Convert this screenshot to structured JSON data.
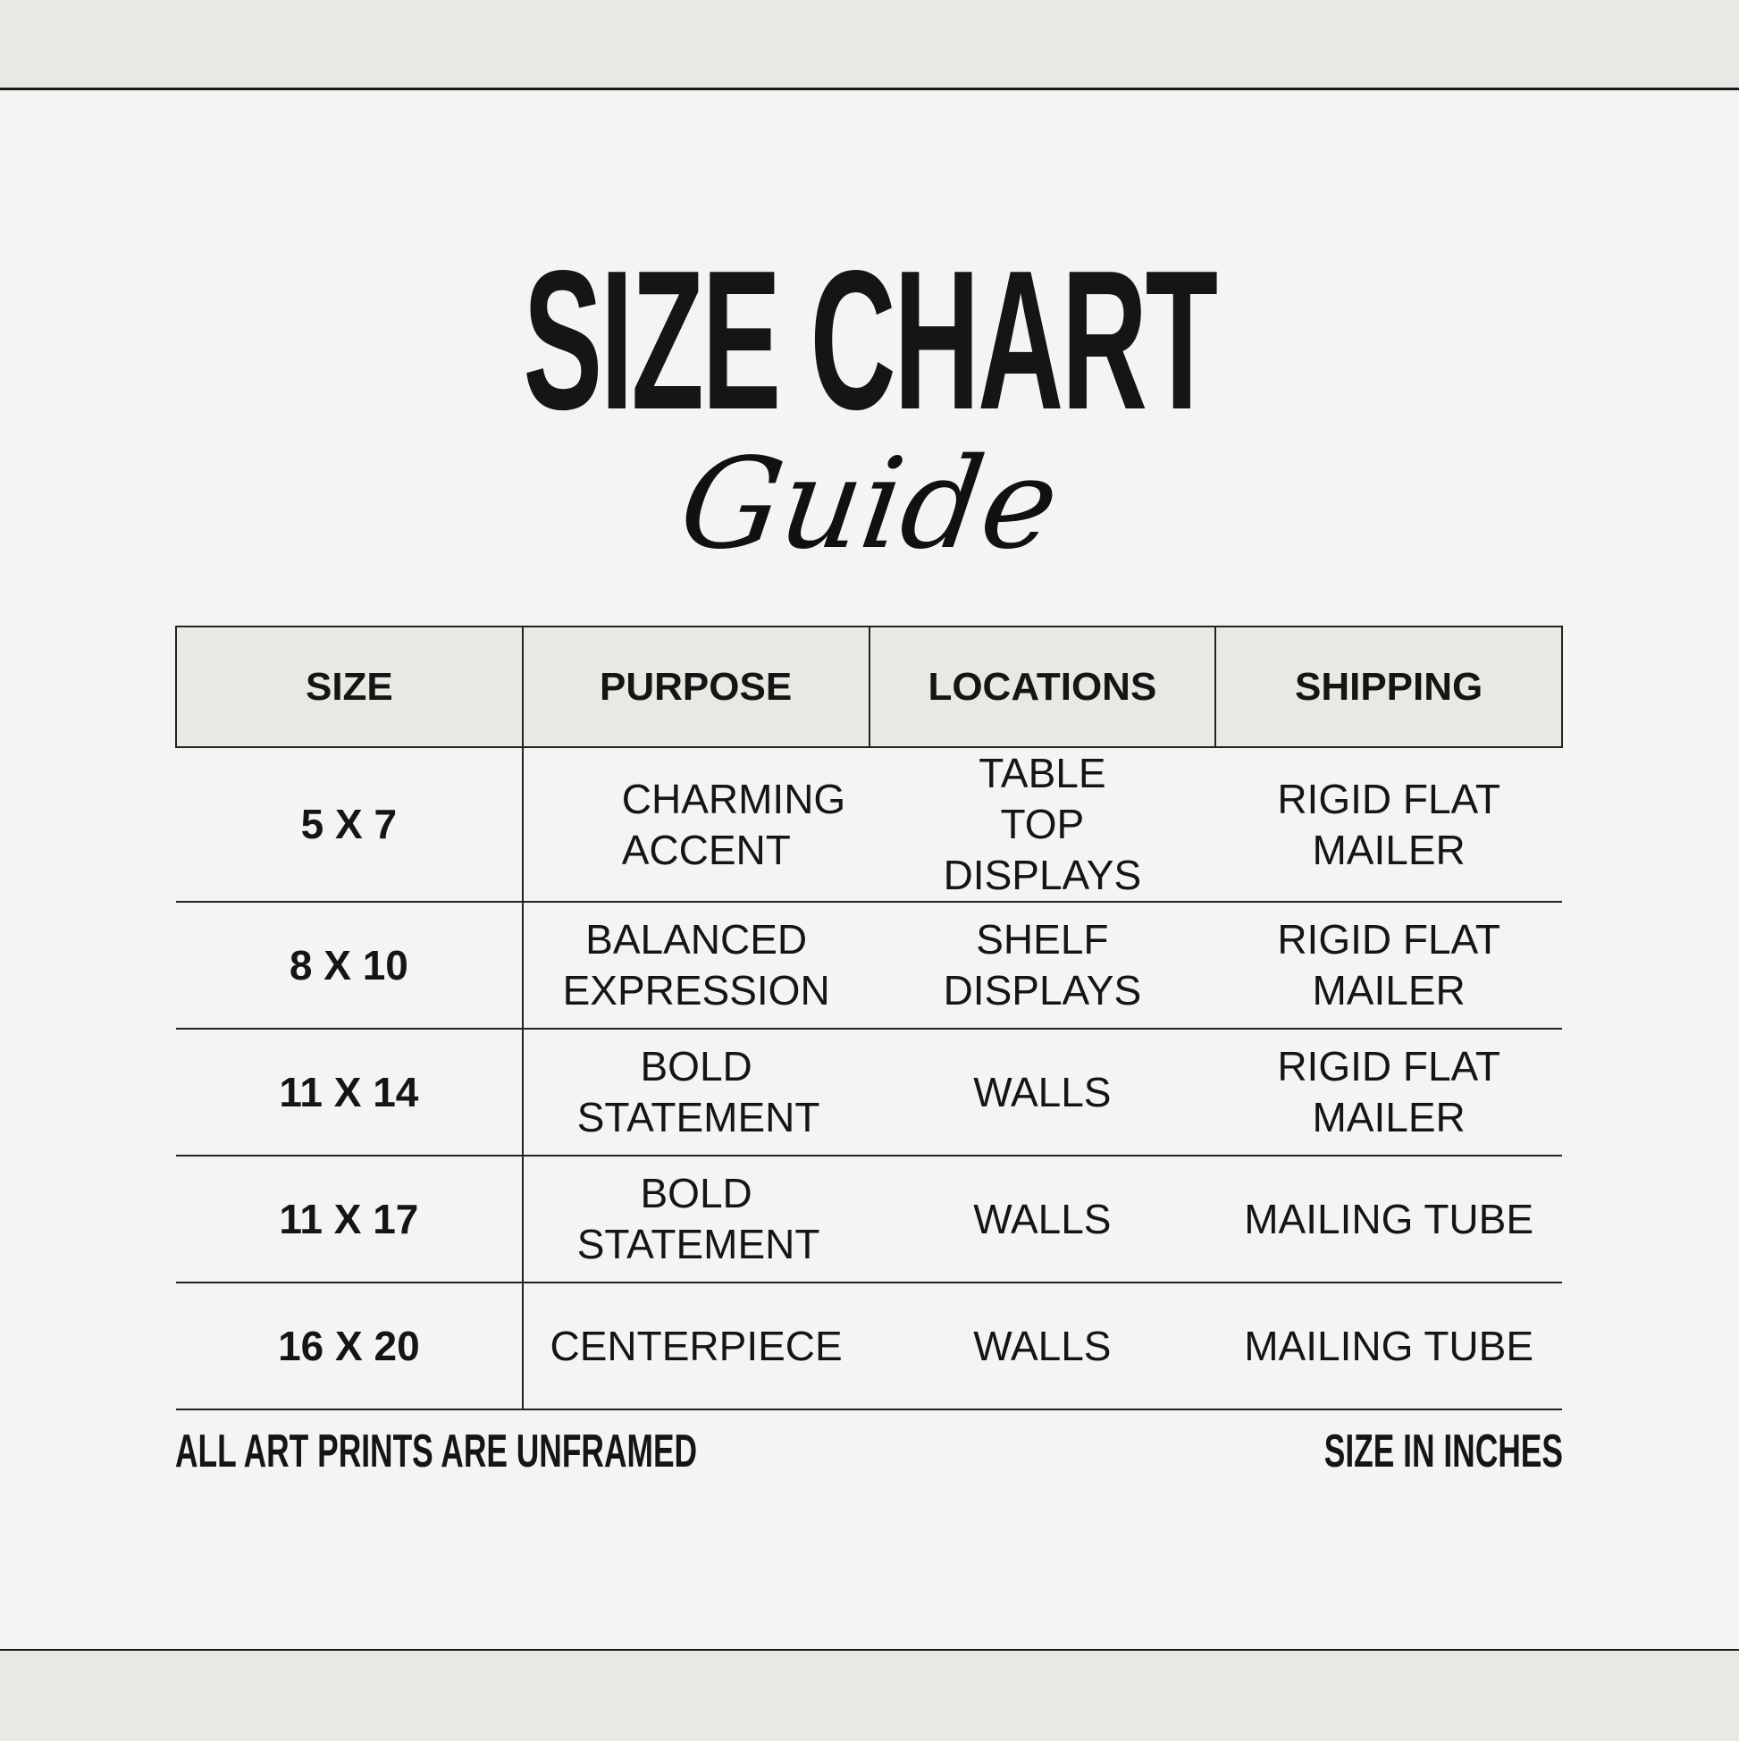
{
  "title": "SIZE CHART",
  "subtitle": "Guide",
  "table": {
    "headers": [
      "SIZE",
      "PURPOSE",
      "LOCATIONS",
      "SHIPPING"
    ],
    "rows": [
      {
        "size": "5 X 7",
        "purpose": "CHARMING ACCENT",
        "locations": "TABLE TOP DISPLAYS",
        "shipping": "RIGID FLAT MAILER"
      },
      {
        "size": "8 X 10",
        "purpose": "BALANCED EXPRESSION",
        "locations": "SHELF DISPLAYS",
        "shipping": "RIGID FLAT MAILER"
      },
      {
        "size": "11 X 14",
        "purpose": "BOLD STATEMENT",
        "locations": "WALLS",
        "shipping": "RIGID FLAT MAILER"
      },
      {
        "size": "11 X 17",
        "purpose": "BOLD STATEMENT",
        "locations": "WALLS",
        "shipping": "MAILING TUBE"
      },
      {
        "size": "16 X 20",
        "purpose": "CENTERPIECE",
        "locations": "WALLS",
        "shipping": "MAILING TUBE"
      }
    ]
  },
  "footer": {
    "left": "ALL ART PRINTS ARE UNFRAMED",
    "right": "SIZE IN INCHES"
  },
  "colors": {
    "background": "#f4f4f2",
    "band": "#e9e9e3",
    "header_fill": "#e9e9e4",
    "text": "#151515"
  }
}
